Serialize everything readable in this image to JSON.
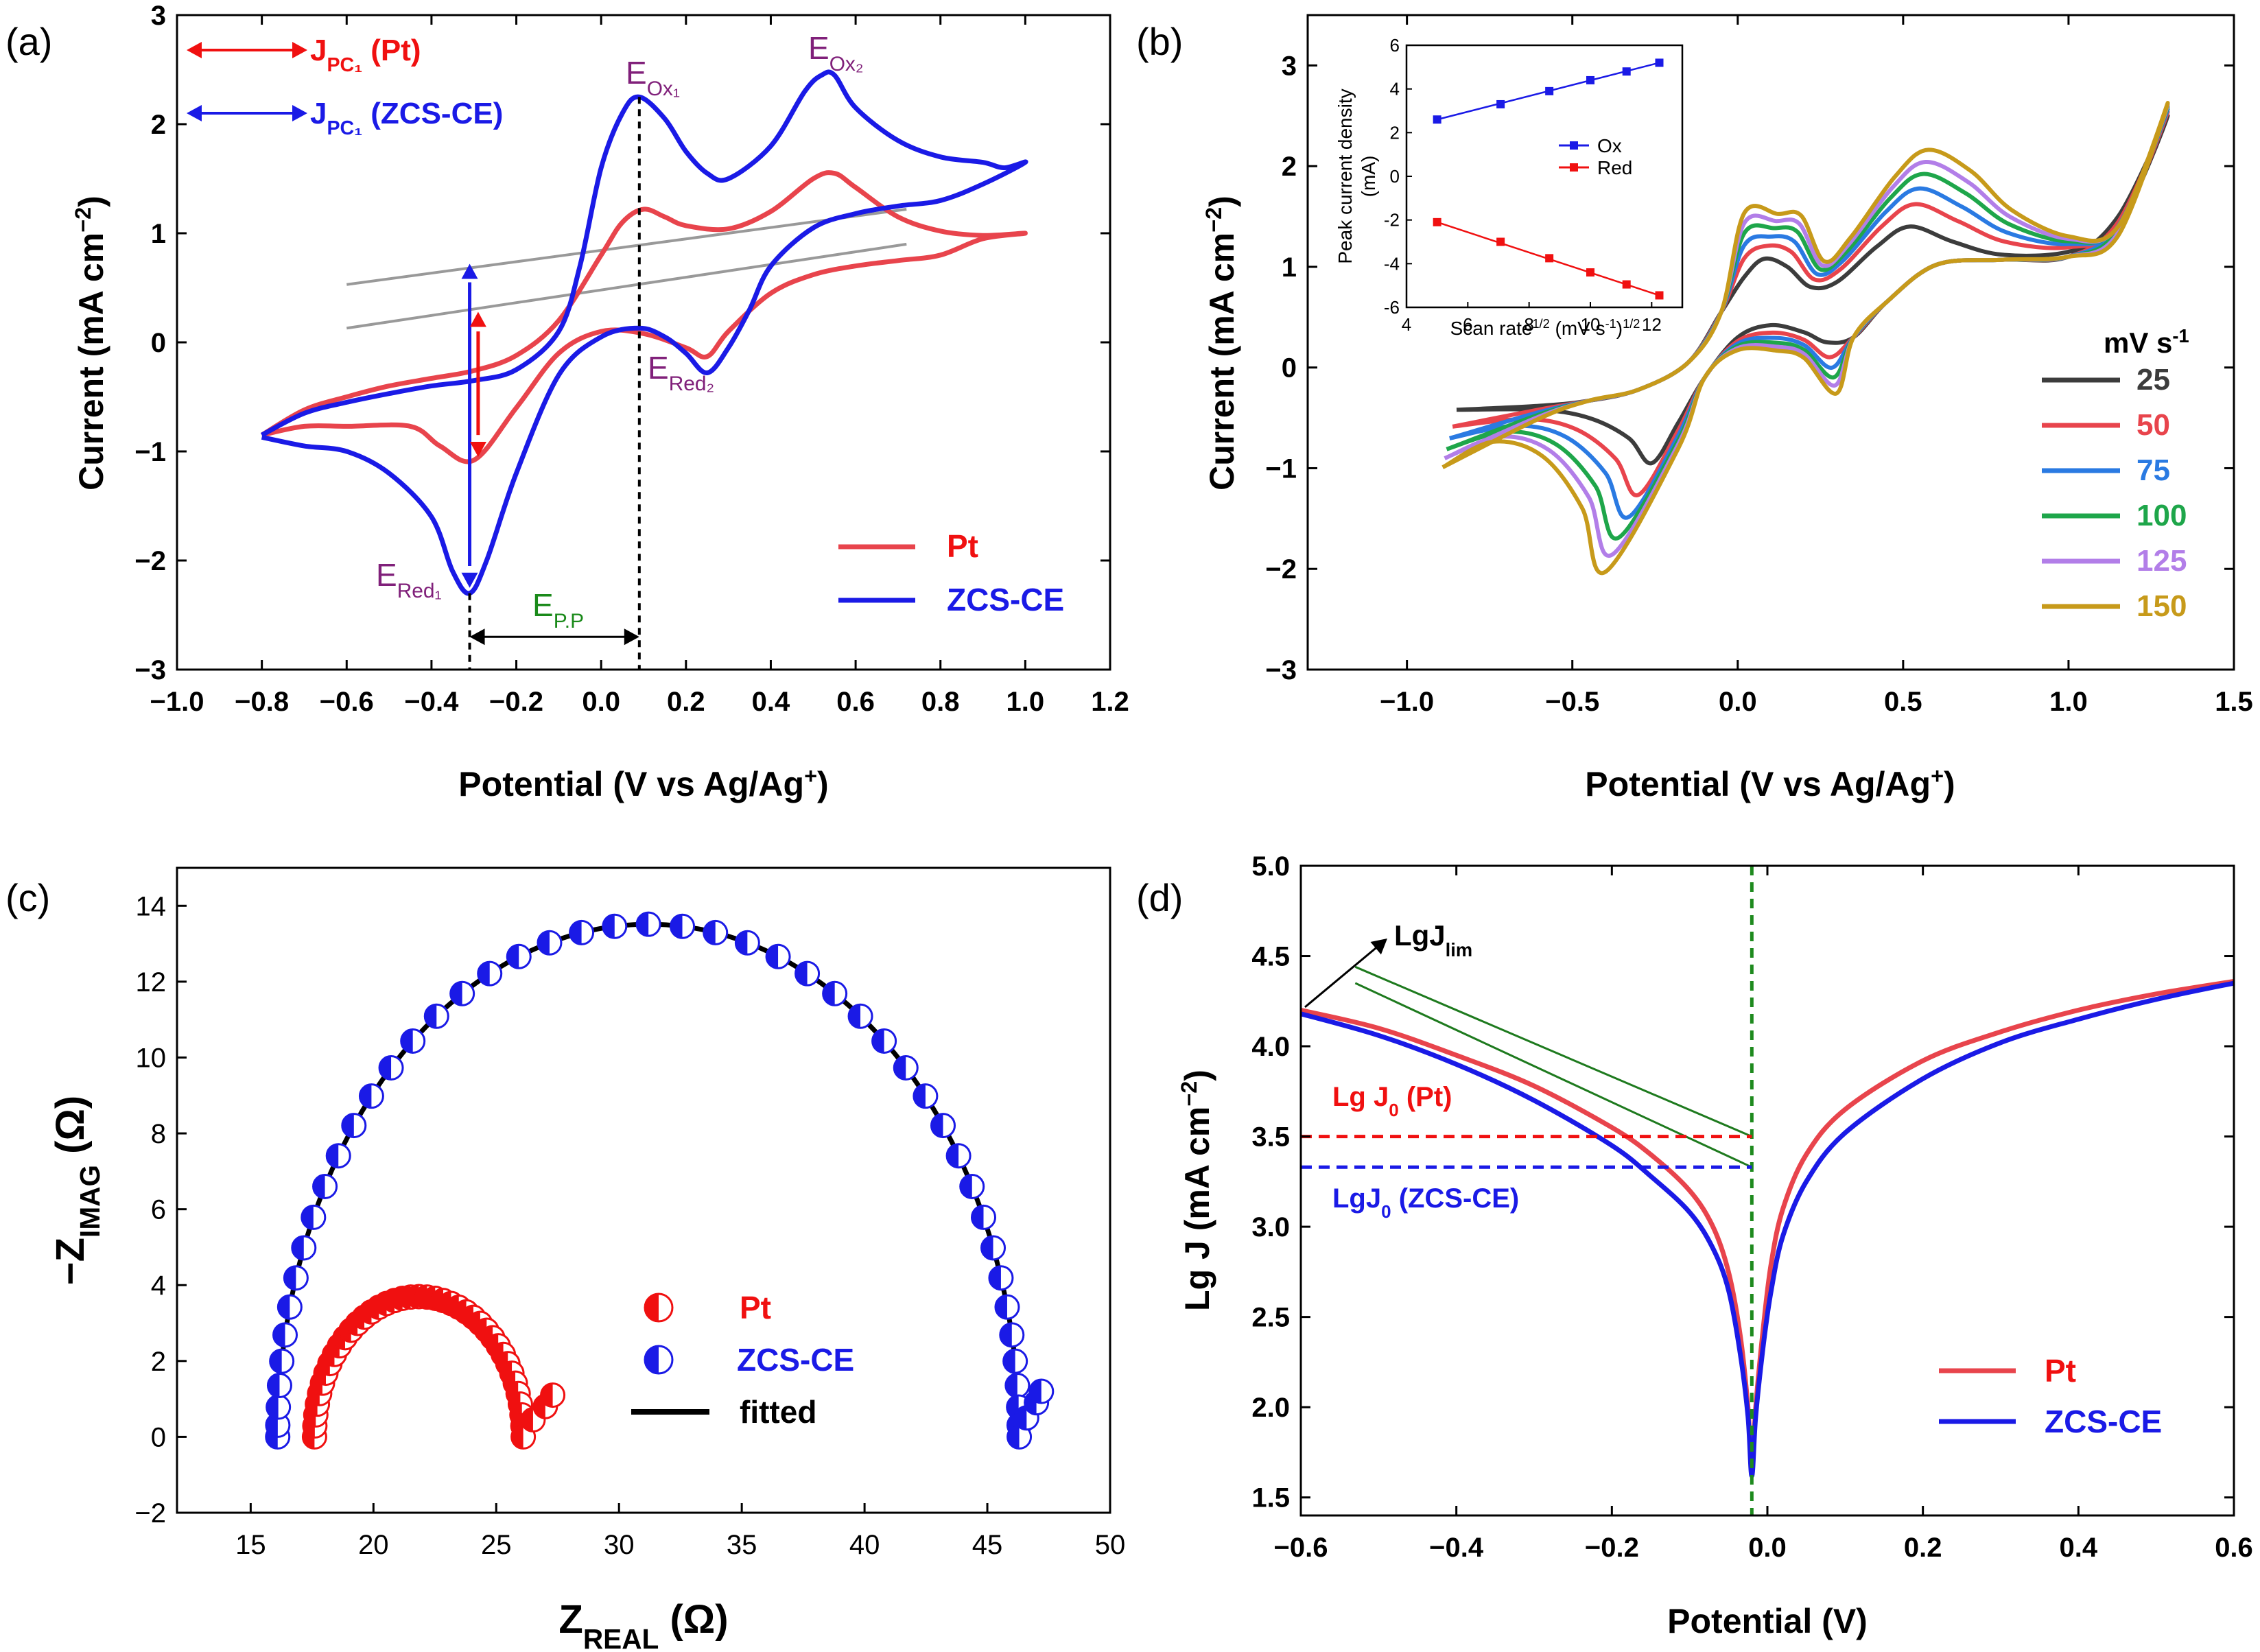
{
  "chart_data": [
    {
      "panel": "(a)",
      "type": "line",
      "xlabel": "Potential (V vs Ag/Ag",
      "xlabel_sup": "+",
      "xlabel_close": ")",
      "ylabel": "Current (mA cm",
      "ylabel_sup": "−2",
      "ylabel_close": ")",
      "xlim": [
        -1.0,
        1.2
      ],
      "ylim": [
        -3,
        3
      ],
      "xticks": [
        -1.0,
        -0.8,
        -0.6,
        -0.4,
        -0.2,
        0.0,
        0.2,
        0.4,
        0.6,
        0.8,
        1.0,
        1.2
      ],
      "xtick_labels": [
        "−1.0",
        "−0.8",
        "−0.6",
        "−0.4",
        "−0.2",
        "0.0",
        "0.2",
        "0.4",
        "0.6",
        "0.8",
        "1.0",
        "1.2"
      ],
      "yticks": [
        -3,
        -2,
        -1,
        0,
        1,
        2,
        3
      ],
      "ytick_labels": [
        "−3",
        "−2",
        "−1",
        "0",
        "1",
        "2",
        "3"
      ],
      "legend": [
        "Pt",
        "ZCS-CE"
      ],
      "colors": {
        "Pt": "#e8444c",
        "ZCS-CE": "#1a1ae6"
      },
      "annotations": {
        "jpc_pt": "J",
        "jpc_pt_sub": "PC₁",
        "jpc_pt_tail": " (Pt)",
        "jpc_zcs": "J",
        "jpc_zcs_sub": "PC₁",
        "jpc_zcs_tail": " (ZCS-CE)",
        "eox1": "E",
        "eox1_sub": "Ox₁",
        "eox2": "E",
        "eox2_sub": "Ox₂",
        "ered1": "E",
        "ered1_sub": "Red₁",
        "ered2": "E",
        "ered2_sub": "Red₂",
        "epp": "E",
        "epp_sub": "P.P"
      },
      "series": [
        {
          "name": "Pt",
          "points": [
            [
              -0.8,
              -0.85
            ],
            [
              -0.7,
              -0.62
            ],
            [
              -0.6,
              -0.5
            ],
            [
              -0.5,
              -0.4
            ],
            [
              -0.4,
              -0.33
            ],
            [
              -0.3,
              -0.26
            ],
            [
              -0.2,
              -0.12
            ],
            [
              -0.1,
              0.2
            ],
            [
              0.0,
              0.8
            ],
            [
              0.05,
              1.1
            ],
            [
              0.1,
              1.22
            ],
            [
              0.15,
              1.15
            ],
            [
              0.2,
              1.07
            ],
            [
              0.3,
              1.04
            ],
            [
              0.4,
              1.2
            ],
            [
              0.5,
              1.5
            ],
            [
              0.55,
              1.55
            ],
            [
              0.6,
              1.42
            ],
            [
              0.7,
              1.15
            ],
            [
              0.8,
              1.02
            ],
            [
              0.9,
              0.98
            ],
            [
              1.0,
              1.0
            ],
            [
              0.9,
              0.95
            ],
            [
              0.8,
              0.8
            ],
            [
              0.7,
              0.75
            ],
            [
              0.6,
              0.7
            ],
            [
              0.5,
              0.62
            ],
            [
              0.4,
              0.45
            ],
            [
              0.3,
              0.1
            ],
            [
              0.25,
              -0.13
            ],
            [
              0.2,
              -0.05
            ],
            [
              0.1,
              0.08
            ],
            [
              0.0,
              0.1
            ],
            [
              -0.1,
              -0.1
            ],
            [
              -0.2,
              -0.6
            ],
            [
              -0.3,
              -1.08
            ],
            [
              -0.38,
              -0.95
            ],
            [
              -0.45,
              -0.77
            ],
            [
              -0.6,
              -0.77
            ],
            [
              -0.7,
              -0.77
            ],
            [
              -0.8,
              -0.85
            ]
          ]
        },
        {
          "name": "ZCS-CE",
          "points": [
            [
              -0.8,
              -0.85
            ],
            [
              -0.7,
              -0.65
            ],
            [
              -0.6,
              -0.55
            ],
            [
              -0.5,
              -0.47
            ],
            [
              -0.4,
              -0.4
            ],
            [
              -0.3,
              -0.35
            ],
            [
              -0.2,
              -0.25
            ],
            [
              -0.1,
              0.1
            ],
            [
              -0.05,
              0.7
            ],
            [
              0.0,
              1.6
            ],
            [
              0.05,
              2.1
            ],
            [
              0.09,
              2.25
            ],
            [
              0.15,
              2.05
            ],
            [
              0.2,
              1.75
            ],
            [
              0.25,
              1.55
            ],
            [
              0.3,
              1.5
            ],
            [
              0.4,
              1.8
            ],
            [
              0.48,
              2.3
            ],
            [
              0.52,
              2.45
            ],
            [
              0.55,
              2.45
            ],
            [
              0.6,
              2.15
            ],
            [
              0.7,
              1.85
            ],
            [
              0.8,
              1.7
            ],
            [
              0.9,
              1.65
            ],
            [
              0.95,
              1.6
            ],
            [
              1.0,
              1.65
            ],
            [
              0.9,
              1.45
            ],
            [
              0.8,
              1.3
            ],
            [
              0.7,
              1.25
            ],
            [
              0.6,
              1.18
            ],
            [
              0.5,
              1.05
            ],
            [
              0.4,
              0.7
            ],
            [
              0.35,
              0.3
            ],
            [
              0.3,
              -0.05
            ],
            [
              0.25,
              -0.28
            ],
            [
              0.2,
              -0.1
            ],
            [
              0.15,
              0.05
            ],
            [
              0.09,
              0.13
            ],
            [
              0.0,
              0.05
            ],
            [
              -0.1,
              -0.3
            ],
            [
              -0.2,
              -1.2
            ],
            [
              -0.27,
              -2.0
            ],
            [
              -0.31,
              -2.3
            ],
            [
              -0.35,
              -2.1
            ],
            [
              -0.4,
              -1.6
            ],
            [
              -0.5,
              -1.2
            ],
            [
              -0.6,
              -1.0
            ],
            [
              -0.7,
              -0.95
            ],
            [
              -0.8,
              -0.87
            ]
          ]
        }
      ]
    },
    {
      "panel": "(b)",
      "type": "line",
      "xlabel": "Potential (V vs Ag/Ag",
      "xlabel_sup": "+",
      "xlabel_close": ")",
      "ylabel": "Current (mA cm",
      "ylabel_sup": "−2",
      "ylabel_close": ")",
      "xlim": [
        -1.3,
        1.5
      ],
      "ylim": [
        -3,
        3.5
      ],
      "xticks": [
        -1.0,
        -0.5,
        0.0,
        0.5,
        1.0,
        1.5
      ],
      "xtick_labels": [
        "−1.0",
        "−0.5",
        "0.0",
        "0.5",
        "1.0",
        "1.5"
      ],
      "yticks": [
        -3,
        -2,
        -1,
        0,
        1,
        2,
        3
      ],
      "ytick_labels": [
        "−3",
        "−2",
        "−1",
        "0",
        "1",
        "2",
        "3"
      ],
      "legend_title": "mV s",
      "legend_title_sup": "-1",
      "scan_rates": [
        "25",
        "50",
        "75",
        "100",
        "125",
        "150"
      ],
      "colors": [
        "#3c3c3c",
        "#e8444c",
        "#2a7ae2",
        "#1ea64a",
        "#b27ee8",
        "#c79a1a"
      ],
      "peak_scale": [
        1.0,
        1.37,
        1.63,
        1.87,
        2.07,
        2.27
      ],
      "inset": {
        "xlabel": "Scan rate",
        "xlabel_sup": "1/2",
        "xlabel_tail": " (mV s",
        "xlabel_sup2": "-1",
        "xlabel_tail2": ")",
        "xlabel_sup3": "1/2",
        "ylabel_line1": "Peak current density",
        "ylabel_line2": "(mA)",
        "xlim": [
          4,
          13
        ],
        "ylim": [
          -6,
          6
        ],
        "xticks": [
          "4",
          "6",
          "8",
          "10",
          "12"
        ],
        "yticks": [
          "-6",
          "-4",
          "-2",
          "0",
          "2",
          "4",
          "6"
        ],
        "legend": [
          "Ox",
          "Red"
        ],
        "ox_points": [
          [
            5,
            2.6
          ],
          [
            7.07,
            3.3
          ],
          [
            8.66,
            3.9
          ],
          [
            10,
            4.4
          ],
          [
            11.18,
            4.8
          ],
          [
            12.25,
            5.2
          ]
        ],
        "red_points": [
          [
            5,
            -2.1
          ],
          [
            7.07,
            -3.0
          ],
          [
            8.66,
            -3.75
          ],
          [
            10,
            -4.4
          ],
          [
            11.18,
            -4.95
          ],
          [
            12.25,
            -5.45
          ]
        ]
      }
    },
    {
      "panel": "(c)",
      "type": "scatter",
      "xlabel": "Z",
      "xlabel_sub": "REAL",
      "xlabel_tail": " (Ω)",
      "ylabel": "−Z",
      "ylabel_sub": "IMAG",
      "ylabel_tail": " (Ω)",
      "xlim": [
        12,
        50
      ],
      "ylim": [
        -2,
        15
      ],
      "xticks": [
        "15",
        "20",
        "25",
        "30",
        "35",
        "40",
        "45",
        "50"
      ],
      "yticks": [
        "−2",
        "0",
        "2",
        "4",
        "6",
        "8",
        "10",
        "12",
        "14"
      ],
      "legend": [
        "Pt",
        "ZCS-CE",
        "fitted"
      ],
      "pt_arc": {
        "rs": 17.6,
        "rct": 8.5,
        "tail": [
          [
            26.5,
            0.45
          ],
          [
            27.0,
            0.8
          ],
          [
            27.3,
            1.1
          ]
        ]
      },
      "zcs_arc": {
        "rs": 16.1,
        "rct": 30.2,
        "tail": [
          [
            46.6,
            0.5
          ],
          [
            47.0,
            0.9
          ],
          [
            47.2,
            1.2
          ]
        ]
      }
    },
    {
      "panel": "(d)",
      "type": "line",
      "xlabel": "Potential (V)",
      "ylabel": "Lg J (mA cm",
      "ylabel_sup": "−2",
      "ylabel_close": ")",
      "xlim": [
        -0.6,
        0.6
      ],
      "ylim": [
        1.4,
        5.0
      ],
      "xticks": [
        -0.6,
        -0.4,
        -0.2,
        0.0,
        0.2,
        0.4,
        0.6
      ],
      "xtick_labels": [
        "−0.6",
        "−0.4",
        "−0.2",
        "0.0",
        "0.2",
        "0.4",
        "0.6"
      ],
      "yticks": [
        1.5,
        2.0,
        2.5,
        3.0,
        3.5,
        4.0,
        4.5,
        5.0
      ],
      "ytick_labels": [
        "1.5",
        "2.0",
        "2.5",
        "3.0",
        "3.5",
        "4.0",
        "4.5",
        "5.0"
      ],
      "legend": [
        "Pt",
        "ZCS-CE"
      ],
      "annotations": {
        "lgjlim": "LgJ",
        "lgjlim_sub": "lim",
        "lgj0_pt": "Lg J",
        "lgj0_pt_sub": "0",
        "lgj0_pt_tail": " (Pt)",
        "lgj0_zcs": "LgJ",
        "lgj0_zcs_sub": "0",
        "lgj0_zcs_tail": " (ZCS-CE)"
      },
      "e0": -0.02,
      "lgj0_pt_value": 3.5,
      "lgj0_zcs_value": 3.33,
      "series": [
        {
          "name": "Pt",
          "points": [
            [
              -0.6,
              4.2
            ],
            [
              -0.5,
              4.1
            ],
            [
              -0.4,
              3.95
            ],
            [
              -0.3,
              3.78
            ],
            [
              -0.2,
              3.55
            ],
            [
              -0.15,
              3.4
            ],
            [
              -0.1,
              3.2
            ],
            [
              -0.07,
              3.0
            ],
            [
              -0.05,
              2.75
            ],
            [
              -0.035,
              2.4
            ],
            [
              -0.025,
              2.0
            ],
            [
              -0.02,
              1.65
            ],
            [
              -0.015,
              2.0
            ],
            [
              -0.005,
              2.45
            ],
            [
              0.005,
              2.8
            ],
            [
              0.02,
              3.1
            ],
            [
              0.05,
              3.4
            ],
            [
              0.1,
              3.65
            ],
            [
              0.2,
              3.92
            ],
            [
              0.3,
              4.08
            ],
            [
              0.4,
              4.2
            ],
            [
              0.5,
              4.29
            ],
            [
              0.6,
              4.36
            ]
          ]
        },
        {
          "name": "ZCS-CE",
          "points": [
            [
              -0.6,
              4.18
            ],
            [
              -0.5,
              4.06
            ],
            [
              -0.4,
              3.9
            ],
            [
              -0.3,
              3.7
            ],
            [
              -0.2,
              3.45
            ],
            [
              -0.15,
              3.28
            ],
            [
              -0.1,
              3.08
            ],
            [
              -0.07,
              2.88
            ],
            [
              -0.05,
              2.65
            ],
            [
              -0.035,
              2.3
            ],
            [
              -0.025,
              1.95
            ],
            [
              -0.02,
              1.62
            ],
            [
              -0.015,
              1.95
            ],
            [
              -0.005,
              2.35
            ],
            [
              0.005,
              2.65
            ],
            [
              0.02,
              2.95
            ],
            [
              0.05,
              3.25
            ],
            [
              0.1,
              3.52
            ],
            [
              0.2,
              3.82
            ],
            [
              0.3,
              4.02
            ],
            [
              0.4,
              4.15
            ],
            [
              0.5,
              4.26
            ],
            [
              0.6,
              4.35
            ]
          ]
        }
      ]
    }
  ]
}
